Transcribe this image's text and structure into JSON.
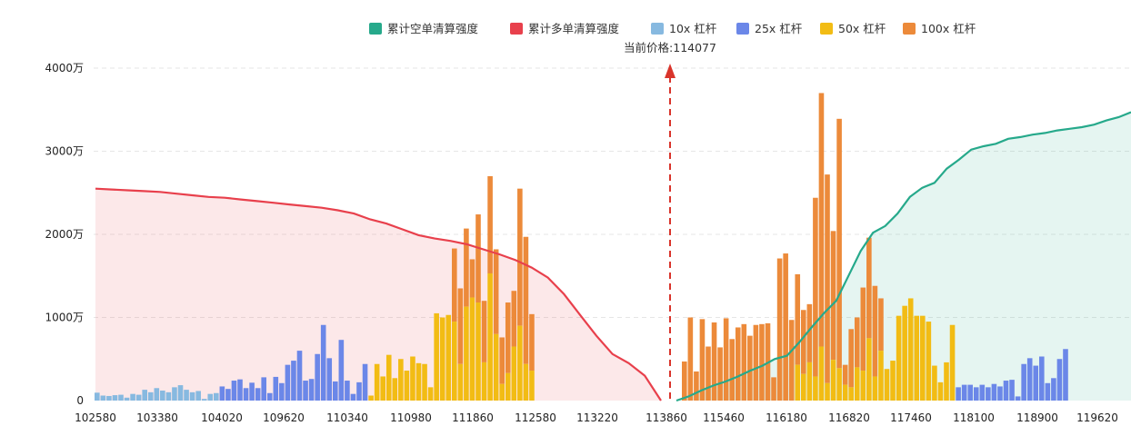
{
  "chart_data": {
    "type": "bar",
    "title": "",
    "xlabel": "",
    "ylabel": "",
    "ylim": [
      0,
      4000
    ],
    "y_unit": "万",
    "y_ticks": [
      "0",
      "1000万",
      "2000万",
      "3000万",
      "4000万"
    ],
    "x_ticks": [
      "102580",
      "103380",
      "104020",
      "109620",
      "110340",
      "110980",
      "111860",
      "112580",
      "113220",
      "113860",
      "115460",
      "116180",
      "116820",
      "117460",
      "118100",
      "118900",
      "119620"
    ],
    "current_price_label": "当前价格:114077",
    "grid": true,
    "legend_position": "top-center",
    "colors": {
      "short_cumulative": "#26A98B",
      "long_cumulative": "#E8404C",
      "lev10": "#87B9E0",
      "lev25": "#6B87E8",
      "lev50": "#F2BC14",
      "lev100": "#EC8A3A"
    },
    "legend": [
      {
        "key": "short_cumulative",
        "label": "累计空单清算强度"
      },
      {
        "key": "long_cumulative",
        "label": "累计多单清算强度"
      },
      {
        "key": "lev10",
        "label": "10x 杠杆"
      },
      {
        "key": "lev25",
        "label": "25x 杠杆"
      },
      {
        "key": "lev50",
        "label": "50x 杠杆"
      },
      {
        "key": "lev100",
        "label": "100x 杠杆"
      }
    ],
    "left_bars": [
      {
        "lev": "lev10",
        "v": 95
      },
      {
        "lev": "lev10",
        "v": 60
      },
      {
        "lev": "lev10",
        "v": 55
      },
      {
        "lev": "lev10",
        "v": 65
      },
      {
        "lev": "lev10",
        "v": 70
      },
      {
        "lev": "lev10",
        "v": 35
      },
      {
        "lev": "lev10",
        "v": 80
      },
      {
        "lev": "lev10",
        "v": 70
      },
      {
        "lev": "lev10",
        "v": 130
      },
      {
        "lev": "lev10",
        "v": 100
      },
      {
        "lev": "lev10",
        "v": 150
      },
      {
        "lev": "lev10",
        "v": 120
      },
      {
        "lev": "lev10",
        "v": 100
      },
      {
        "lev": "lev10",
        "v": 160
      },
      {
        "lev": "lev10",
        "v": 185
      },
      {
        "lev": "lev10",
        "v": 130
      },
      {
        "lev": "lev10",
        "v": 100
      },
      {
        "lev": "lev10",
        "v": 115
      },
      {
        "lev": "lev10",
        "v": 20
      },
      {
        "lev": "lev10",
        "v": 80
      },
      {
        "lev": "lev10",
        "v": 90
      },
      {
        "lev": "lev25",
        "v": 170
      },
      {
        "lev": "lev25",
        "v": 140
      },
      {
        "lev": "lev25",
        "v": 240
      },
      {
        "lev": "lev25",
        "v": 255
      },
      {
        "lev": "lev25",
        "v": 150
      },
      {
        "lev": "lev25",
        "v": 215
      },
      {
        "lev": "lev25",
        "v": 150
      },
      {
        "lev": "lev25",
        "v": 280
      },
      {
        "lev": "lev25",
        "v": 90
      },
      {
        "lev": "lev25",
        "v": 285
      },
      {
        "lev": "lev25",
        "v": 210
      },
      {
        "lev": "lev25",
        "v": 430
      },
      {
        "lev": "lev25",
        "v": 480
      },
      {
        "lev": "lev25",
        "v": 600
      },
      {
        "lev": "lev25",
        "v": 240
      },
      {
        "lev": "lev25",
        "v": 260
      },
      {
        "lev": "lev25",
        "v": 560
      },
      {
        "lev": "lev25",
        "v": 910
      },
      {
        "lev": "lev25",
        "v": 510
      },
      {
        "lev": "lev25",
        "v": 230
      },
      {
        "lev": "lev25",
        "v": 730
      },
      {
        "lev": "lev25",
        "v": 240
      },
      {
        "lev": "lev25",
        "v": 80
      },
      {
        "lev": "lev25",
        "v": 220
      },
      {
        "lev": "lev25",
        "v": 440
      },
      {
        "lev": "lev50",
        "v": 60
      },
      {
        "lev": "lev50",
        "v": 440
      },
      {
        "lev": "lev50",
        "v": 290
      },
      {
        "lev": "lev50",
        "v": 550
      },
      {
        "lev": "lev50",
        "v": 270
      },
      {
        "lev": "lev50",
        "v": 500
      },
      {
        "lev": "lev50",
        "v": 360
      },
      {
        "lev": "lev50",
        "v": 530
      },
      {
        "lev": "lev50",
        "v": 450
      },
      {
        "lev": "lev50",
        "v": 440
      },
      {
        "lev": "lev50",
        "v": 160
      },
      {
        "lev": "lev50",
        "v": 1050
      },
      {
        "lev": "lev50",
        "v": 1000
      },
      {
        "lev": "lev50",
        "v": 1030
      },
      {
        "lev": "lev50",
        "v": 950,
        "top": 1830
      },
      {
        "lev": "lev50",
        "v": 440,
        "top": 1350
      },
      {
        "lev": "lev50",
        "v": 1130,
        "top": 2070
      },
      {
        "lev": "lev50",
        "v": 1240,
        "top": 1700
      },
      {
        "lev": "lev50",
        "v": 1180,
        "top": 2240
      },
      {
        "lev": "lev50",
        "v": 460,
        "top": 1200
      },
      {
        "lev": "lev50",
        "v": 1530,
        "top": 2700
      },
      {
        "lev": "lev50",
        "v": 800,
        "top": 1820
      },
      {
        "lev": "lev50",
        "v": 200,
        "top": 760
      },
      {
        "lev": "lev50",
        "v": 330,
        "top": 1180
      },
      {
        "lev": "lev50",
        "v": 650,
        "top": 1320
      },
      {
        "lev": "lev50",
        "v": 900,
        "top": 2550
      },
      {
        "lev": "lev50",
        "v": 440,
        "top": 1970
      },
      {
        "lev": "lev50",
        "v": 360,
        "top": 1040
      }
    ],
    "right_bars": [
      {
        "lev": "lev100",
        "v": 470
      },
      {
        "lev": "lev100",
        "v": 1000
      },
      {
        "lev": "lev100",
        "v": 350
      },
      {
        "lev": "lev100",
        "v": 980
      },
      {
        "lev": "lev100",
        "v": 650
      },
      {
        "lev": "lev100",
        "v": 940
      },
      {
        "lev": "lev100",
        "v": 640
      },
      {
        "lev": "lev100",
        "v": 990
      },
      {
        "lev": "lev100",
        "v": 740
      },
      {
        "lev": "lev100",
        "v": 880
      },
      {
        "lev": "lev100",
        "v": 920
      },
      {
        "lev": "lev100",
        "v": 780
      },
      {
        "lev": "lev100",
        "v": 910
      },
      {
        "lev": "lev100",
        "v": 920
      },
      {
        "lev": "lev100",
        "v": 930
      },
      {
        "lev": "lev100",
        "v": 280
      },
      {
        "lev": "lev100",
        "v": 1710
      },
      {
        "lev": "lev100",
        "v": 1770
      },
      {
        "lev": "lev100",
        "v": 970
      },
      {
        "lev": "lev50",
        "v": 430,
        "top": 1520
      },
      {
        "lev": "lev50",
        "v": 320,
        "top": 1090
      },
      {
        "lev": "lev50",
        "v": 460,
        "top": 1160
      },
      {
        "lev": "lev50",
        "v": 290,
        "top": 2440
      },
      {
        "lev": "lev50",
        "v": 650,
        "top": 3700
      },
      {
        "lev": "lev50",
        "v": 210,
        "top": 2720
      },
      {
        "lev": "lev50",
        "v": 490,
        "top": 2040
      },
      {
        "lev": "lev50",
        "v": 390,
        "top": 3390
      },
      {
        "lev": "lev50",
        "v": 190,
        "top": 430
      },
      {
        "lev": "lev50",
        "v": 160,
        "top": 860
      },
      {
        "lev": "lev50",
        "v": 400,
        "top": 1000
      },
      {
        "lev": "lev50",
        "v": 360,
        "top": 1360
      },
      {
        "lev": "lev50",
        "v": 750,
        "top": 1960
      },
      {
        "lev": "lev50",
        "v": 290,
        "top": 1380
      },
      {
        "lev": "lev50",
        "v": 600,
        "top": 1230
      },
      {
        "lev": "lev50",
        "v": 380
      },
      {
        "lev": "lev50",
        "v": 480
      },
      {
        "lev": "lev50",
        "v": 1020
      },
      {
        "lev": "lev50",
        "v": 1140
      },
      {
        "lev": "lev50",
        "v": 1230
      },
      {
        "lev": "lev50",
        "v": 1020
      },
      {
        "lev": "lev50",
        "v": 1020
      },
      {
        "lev": "lev50",
        "v": 950
      },
      {
        "lev": "lev50",
        "v": 420
      },
      {
        "lev": "lev50",
        "v": 220
      },
      {
        "lev": "lev50",
        "v": 460
      },
      {
        "lev": "lev50",
        "v": 910
      },
      {
        "lev": "lev25",
        "v": 160
      },
      {
        "lev": "lev25",
        "v": 190
      },
      {
        "lev": "lev25",
        "v": 190
      },
      {
        "lev": "lev25",
        "v": 160
      },
      {
        "lev": "lev25",
        "v": 190
      },
      {
        "lev": "lev25",
        "v": 160
      },
      {
        "lev": "lev25",
        "v": 200
      },
      {
        "lev": "lev25",
        "v": 170
      },
      {
        "lev": "lev25",
        "v": 240
      },
      {
        "lev": "lev25",
        "v": 250
      },
      {
        "lev": "lev25",
        "v": 50
      },
      {
        "lev": "lev25",
        "v": 440
      },
      {
        "lev": "lev25",
        "v": 510
      },
      {
        "lev": "lev25",
        "v": 420
      },
      {
        "lev": "lev25",
        "v": 530
      },
      {
        "lev": "lev25",
        "v": 210
      },
      {
        "lev": "lev25",
        "v": 270
      },
      {
        "lev": "lev25",
        "v": 500
      },
      {
        "lev": "lev25",
        "v": 620
      }
    ],
    "long_cumulative_curve": [
      2550,
      2540,
      2530,
      2520,
      2510,
      2490,
      2470,
      2450,
      2440,
      2420,
      2400,
      2380,
      2360,
      2340,
      2320,
      2290,
      2250,
      2180,
      2130,
      2060,
      1990,
      1950,
      1920,
      1880,
      1820,
      1760,
      1690,
      1600,
      1480,
      1280,
      1030,
      780,
      560,
      450,
      300,
      0
    ],
    "short_cumulative_curve": [
      0,
      50,
      120,
      180,
      230,
      290,
      360,
      420,
      500,
      540,
      700,
      880,
      1050,
      1200,
      1500,
      1800,
      2020,
      2100,
      2250,
      2450,
      2560,
      2620,
      2790,
      2900,
      3020,
      3060,
      3090,
      3150,
      3170,
      3200,
      3220,
      3250,
      3270,
      3290,
      3320,
      3370,
      3410,
      3470
    ]
  }
}
